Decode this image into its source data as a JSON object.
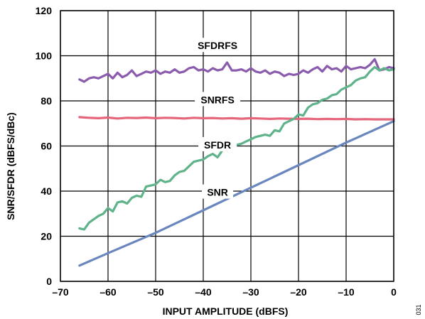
{
  "chart_data": {
    "type": "line",
    "xlabel": "INPUT AMPLITUDE (dBFS)",
    "ylabel": "SNR/SFDR (dBFS/dBc)",
    "xlim": [
      -70,
      0
    ],
    "ylim": [
      0,
      120
    ],
    "x_ticks": [
      -70,
      -60,
      -50,
      -40,
      -30,
      -20,
      -10,
      0
    ],
    "x_tick_labels": [
      "–70",
      "–60",
      "–50",
      "–40",
      "–30",
      "–20",
      "–10",
      "0"
    ],
    "y_ticks": [
      0,
      20,
      40,
      60,
      80,
      100,
      120
    ],
    "y_tick_labels": [
      "0",
      "20",
      "40",
      "60",
      "80",
      "100",
      "120"
    ],
    "grid": true,
    "figure_id": "031",
    "series": [
      {
        "name": "SFDRFS",
        "color": "#8B5BAE",
        "x": [
          -66,
          -65,
          -64,
          -63,
          -62,
          -61,
          -60,
          -59,
          -58,
          -57,
          -56,
          -55,
          -54,
          -53,
          -52,
          -51,
          -50,
          -49,
          -48,
          -47,
          -46,
          -45,
          -44,
          -43,
          -42,
          -41,
          -40,
          -39,
          -38,
          -37,
          -36,
          -35,
          -34,
          -33,
          -32,
          -31,
          -30,
          -29,
          -28,
          -27,
          -26,
          -25,
          -24,
          -23,
          -22,
          -21,
          -20,
          -19,
          -18,
          -17,
          -16,
          -15,
          -14,
          -13,
          -12,
          -11,
          -10,
          -9,
          -8,
          -7,
          -6,
          -5,
          -4,
          -3,
          -2,
          -1,
          0
        ],
        "y": [
          89.5,
          88.5,
          90.0,
          90.5,
          90.0,
          91.0,
          92.0,
          90.0,
          92.5,
          90.5,
          91.5,
          93.5,
          91.0,
          92.0,
          93.0,
          92.5,
          93.5,
          92.0,
          93.0,
          92.5,
          94.0,
          92.5,
          93.0,
          94.5,
          95.0,
          93.5,
          94.0,
          93.0,
          94.5,
          93.5,
          94.0,
          97.0,
          93.5,
          93.5,
          94.0,
          93.0,
          94.5,
          93.0,
          92.5,
          93.5,
          92.0,
          93.0,
          92.5,
          91.0,
          92.0,
          91.5,
          92.0,
          93.5,
          92.5,
          94.0,
          95.0,
          93.0,
          95.5,
          94.0,
          94.5,
          93.0,
          95.5,
          94.0,
          94.5,
          95.0,
          94.5,
          96.0,
          98.5,
          93.5,
          94.0,
          95.0,
          94.5
        ]
      },
      {
        "name": "SNRFS",
        "color": "#E5657A",
        "x": [
          -66,
          -64,
          -62,
          -60,
          -58,
          -56,
          -54,
          -52,
          -50,
          -48,
          -46,
          -44,
          -42,
          -40,
          -38,
          -36,
          -34,
          -32,
          -30,
          -28,
          -26,
          -24,
          -22,
          -20,
          -18,
          -16,
          -14,
          -12,
          -10,
          -8,
          -6,
          -4,
          -2,
          0
        ],
        "y": [
          72.8,
          72.5,
          72.3,
          72.6,
          72.2,
          72.5,
          72.4,
          72.6,
          72.3,
          72.5,
          72.4,
          72.2,
          72.5,
          72.3,
          72.4,
          72.2,
          72.3,
          72.1,
          72.3,
          72.2,
          72.0,
          72.2,
          72.1,
          72.0,
          72.1,
          71.9,
          72.0,
          71.9,
          72.0,
          71.8,
          71.9,
          71.8,
          71.8,
          71.8
        ]
      },
      {
        "name": "SFDR",
        "color": "#5FB38A",
        "x": [
          -66,
          -65,
          -64,
          -63,
          -62,
          -61,
          -60,
          -59,
          -58,
          -57,
          -56,
          -55,
          -54,
          -53,
          -52,
          -51,
          -50,
          -49,
          -48,
          -47,
          -46,
          -45,
          -44,
          -43,
          -42,
          -41,
          -40,
          -39,
          -38,
          -37,
          -36,
          -35,
          -34,
          -33,
          -32,
          -31,
          -30,
          -29,
          -28,
          -27,
          -26,
          -25,
          -24,
          -23,
          -22,
          -21,
          -20,
          -19,
          -18,
          -17,
          -16,
          -15,
          -14,
          -13,
          -12,
          -11,
          -10,
          -9,
          -8,
          -7,
          -6,
          -5,
          -4,
          -3,
          -2,
          -1,
          0
        ],
        "y": [
          23.5,
          23.0,
          26.0,
          27.5,
          29.0,
          30.0,
          32.5,
          31.0,
          35.0,
          35.5,
          34.5,
          37.0,
          38.0,
          37.5,
          42.0,
          42.5,
          43.0,
          45.0,
          44.0,
          44.5,
          47.0,
          48.5,
          49.0,
          51.0,
          53.0,
          53.5,
          54.0,
          55.5,
          56.5,
          55.0,
          58.0,
          62.0,
          60.0,
          60.5,
          61.0,
          62.0,
          63.0,
          64.0,
          64.5,
          65.0,
          64.5,
          67.0,
          66.5,
          70.0,
          71.0,
          72.0,
          74.0,
          73.5,
          77.0,
          78.5,
          79.0,
          80.5,
          81.0,
          82.5,
          83.0,
          85.0,
          86.0,
          87.0,
          89.0,
          90.0,
          90.5,
          93.0,
          95.0,
          93.5,
          94.5,
          93.5,
          94.0
        ]
      },
      {
        "name": "SNR",
        "color": "#6A86BE",
        "x": [
          -66,
          -60,
          -50,
          -40,
          -30,
          -20,
          -10,
          0
        ],
        "y": [
          7.0,
          12.5,
          21.5,
          31.5,
          41.5,
          51.5,
          61.5,
          71.0
        ]
      }
    ]
  }
}
